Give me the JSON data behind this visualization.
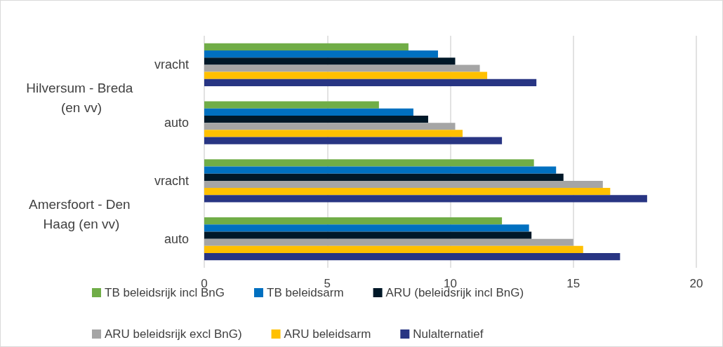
{
  "chart_data": {
    "type": "bar",
    "orientation": "horizontal",
    "categories": [
      "vracht",
      "auto",
      "vracht",
      "auto"
    ],
    "annotations": [
      "Hilversum - Breda (en vv)",
      "Amersfoort - Den Haag (en vv)"
    ],
    "series": [
      {
        "name": "TB beleidsrijk incl BnG",
        "color": "#70ad47",
        "values": [
          8.3,
          7.1,
          13.4,
          12.1
        ]
      },
      {
        "name": "TB beleidsarm",
        "color": "#0070c0",
        "values": [
          9.5,
          8.5,
          14.3,
          13.2
        ]
      },
      {
        "name": "ARU (beleidsrijk incl BnG)",
        "color": "#001828",
        "values": [
          10.2,
          9.1,
          14.6,
          13.3
        ]
      },
      {
        "name": "ARU beleidsrijk excl BnG)",
        "color": "#a5a5a5",
        "values": [
          11.2,
          10.2,
          16.2,
          15.0
        ]
      },
      {
        "name": "ARU beleidsarm",
        "color": "#ffc000",
        "values": [
          11.5,
          10.5,
          16.5,
          15.4
        ]
      },
      {
        "name": "Nulalternatief",
        "color": "#283583",
        "values": [
          13.5,
          12.1,
          18.0,
          16.9
        ]
      }
    ],
    "xlim": [
      0,
      20
    ],
    "xticks": [
      0,
      5,
      10,
      15,
      20
    ],
    "grid": "x",
    "legend": "bottom"
  }
}
